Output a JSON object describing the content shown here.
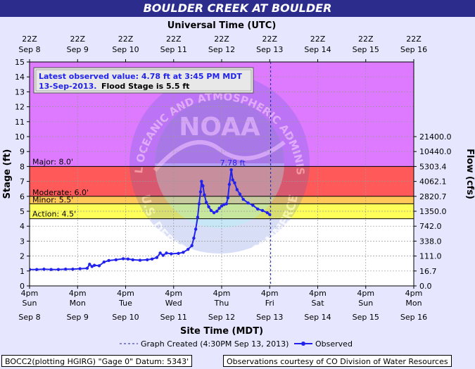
{
  "title": "BOULDER CREEK AT BOULDER",
  "chart_data": {
    "type": "line",
    "top_axis_label": "Universal Time (UTC)",
    "xlabel": "Site Time (MDT)",
    "ylabel": "Stage (ft)",
    "y2label": "Flow (cfs)",
    "ylim": [
      0,
      15
    ],
    "y_ticks": [
      0,
      1,
      2,
      3,
      4,
      5,
      6,
      7,
      8,
      9,
      10,
      11,
      12,
      13,
      14,
      15
    ],
    "x_range_days": [
      0,
      8
    ],
    "x_ticks_bottom": [
      {
        "time": "4pm",
        "day": "Sun",
        "date": "Sep 8"
      },
      {
        "time": "4pm",
        "day": "Mon",
        "date": "Sep 9"
      },
      {
        "time": "4pm",
        "day": "Tue",
        "date": "Sep 10"
      },
      {
        "time": "4pm",
        "day": "Wed",
        "date": "Sep 11"
      },
      {
        "time": "4pm",
        "day": "Thu",
        "date": "Sep 12"
      },
      {
        "time": "4pm",
        "day": "Fri",
        "date": "Sep 13"
      },
      {
        "time": "4pm",
        "day": "Sat",
        "date": "Sep 14"
      },
      {
        "time": "4pm",
        "day": "Sun",
        "date": "Sep 15"
      },
      {
        "time": "4pm",
        "day": "Mon",
        "date": "Sep 16"
      }
    ],
    "x_ticks_top": [
      {
        "time": "22Z",
        "date": "Sep 8"
      },
      {
        "time": "22Z",
        "date": "Sep 9"
      },
      {
        "time": "22Z",
        "date": "Sep 10"
      },
      {
        "time": "22Z",
        "date": "Sep 11"
      },
      {
        "time": "22Z",
        "date": "Sep 12"
      },
      {
        "time": "22Z",
        "date": "Sep 13"
      },
      {
        "time": "22Z",
        "date": "Sep 14"
      },
      {
        "time": "22Z",
        "date": "Sep 15"
      },
      {
        "time": "22Z",
        "date": "Sep 16"
      }
    ],
    "flow_ticks": [
      {
        "stage": 0,
        "label": "0.0"
      },
      {
        "stage": 1,
        "label": "16.7"
      },
      {
        "stage": 2,
        "label": "111.0"
      },
      {
        "stage": 3,
        "label": "338.0"
      },
      {
        "stage": 4,
        "label": "742.0"
      },
      {
        "stage": 5,
        "label": "1350.0"
      },
      {
        "stage": 6,
        "label": "2820.7"
      },
      {
        "stage": 7,
        "label": "4062.1"
      },
      {
        "stage": 8,
        "label": "5303.4"
      },
      {
        "stage": 9,
        "label": "10440.0"
      },
      {
        "stage": 10,
        "label": "21400.0"
      }
    ],
    "bands": [
      {
        "name": "Action: 4.5'",
        "from": 4.5,
        "to": 5.5,
        "color": "#ffff00"
      },
      {
        "name": "Minor: 5.5'",
        "from": 5.5,
        "to": 6.0,
        "color": "#ffaa00"
      },
      {
        "name": "Moderate: 6.0'",
        "from": 6.0,
        "to": 8.0,
        "color": "#ff0000"
      },
      {
        "name": "Major: 8.0'",
        "from": 8.0,
        "to": 15.0,
        "color": "#cc33ff"
      }
    ],
    "graph_created_day": 5.02,
    "peak_label": "7.78 ft",
    "peak": {
      "x": 4.2,
      "y": 7.78
    },
    "series": [
      {
        "name": "Observed",
        "color": "#2222ee",
        "points": [
          [
            0.0,
            1.1
          ],
          [
            0.15,
            1.1
          ],
          [
            0.3,
            1.12
          ],
          [
            0.45,
            1.1
          ],
          [
            0.6,
            1.1
          ],
          [
            0.75,
            1.12
          ],
          [
            0.9,
            1.12
          ],
          [
            1.05,
            1.15
          ],
          [
            1.2,
            1.18
          ],
          [
            1.25,
            1.45
          ],
          [
            1.3,
            1.3
          ],
          [
            1.35,
            1.38
          ],
          [
            1.45,
            1.35
          ],
          [
            1.55,
            1.6
          ],
          [
            1.65,
            1.7
          ],
          [
            1.8,
            1.75
          ],
          [
            1.95,
            1.82
          ],
          [
            2.05,
            1.8
          ],
          [
            2.15,
            1.75
          ],
          [
            2.3,
            1.72
          ],
          [
            2.45,
            1.75
          ],
          [
            2.55,
            1.8
          ],
          [
            2.65,
            1.9
          ],
          [
            2.72,
            2.2
          ],
          [
            2.78,
            2.05
          ],
          [
            2.85,
            2.2
          ],
          [
            2.95,
            2.15
          ],
          [
            3.1,
            2.18
          ],
          [
            3.2,
            2.25
          ],
          [
            3.3,
            2.45
          ],
          [
            3.38,
            2.7
          ],
          [
            3.42,
            3.2
          ],
          [
            3.46,
            3.8
          ],
          [
            3.5,
            4.6
          ],
          [
            3.53,
            5.5
          ],
          [
            3.56,
            6.3
          ],
          [
            3.58,
            7.0
          ],
          [
            3.61,
            6.7
          ],
          [
            3.64,
            6.1
          ],
          [
            3.68,
            5.6
          ],
          [
            3.73,
            5.3
          ],
          [
            3.78,
            5.05
          ],
          [
            3.84,
            4.9
          ],
          [
            3.9,
            5.0
          ],
          [
            3.95,
            5.2
          ],
          [
            4.0,
            5.35
          ],
          [
            4.05,
            5.45
          ],
          [
            4.1,
            5.5
          ],
          [
            4.13,
            5.9
          ],
          [
            4.16,
            6.8
          ],
          [
            4.2,
            7.78
          ],
          [
            4.23,
            7.1
          ],
          [
            4.27,
            6.9
          ],
          [
            4.32,
            6.45
          ],
          [
            4.38,
            6.15
          ],
          [
            4.45,
            5.8
          ],
          [
            4.55,
            5.55
          ],
          [
            4.65,
            5.4
          ],
          [
            4.75,
            5.15
          ],
          [
            4.85,
            5.05
          ],
          [
            4.95,
            4.9
          ],
          [
            5.0,
            4.78
          ]
        ]
      }
    ],
    "latest_observed": {
      "prefix": "Latest observed value:",
      "value": "4.78 ft at 3:45 PM MDT",
      "date": "13-Sep-2013.",
      "flood": "Flood Stage is 5.5 ft"
    },
    "legend": {
      "created": "Graph Created (4:30PM Sep 13, 2013)",
      "observed": "Observed"
    },
    "watermark": {
      "top": "NATIONAL OCEANIC AND ATMOSPHERIC ADMINISTRATION",
      "bottom": "U.S. DEPARTMENT OF COMMERCE",
      "center": "NOAA"
    }
  },
  "footer": {
    "left": "BOCC2(plotting HGIRG) \"Gage 0\" Datum: 5343'",
    "right": "Observations courtesy of CO Division of Water Resources"
  }
}
